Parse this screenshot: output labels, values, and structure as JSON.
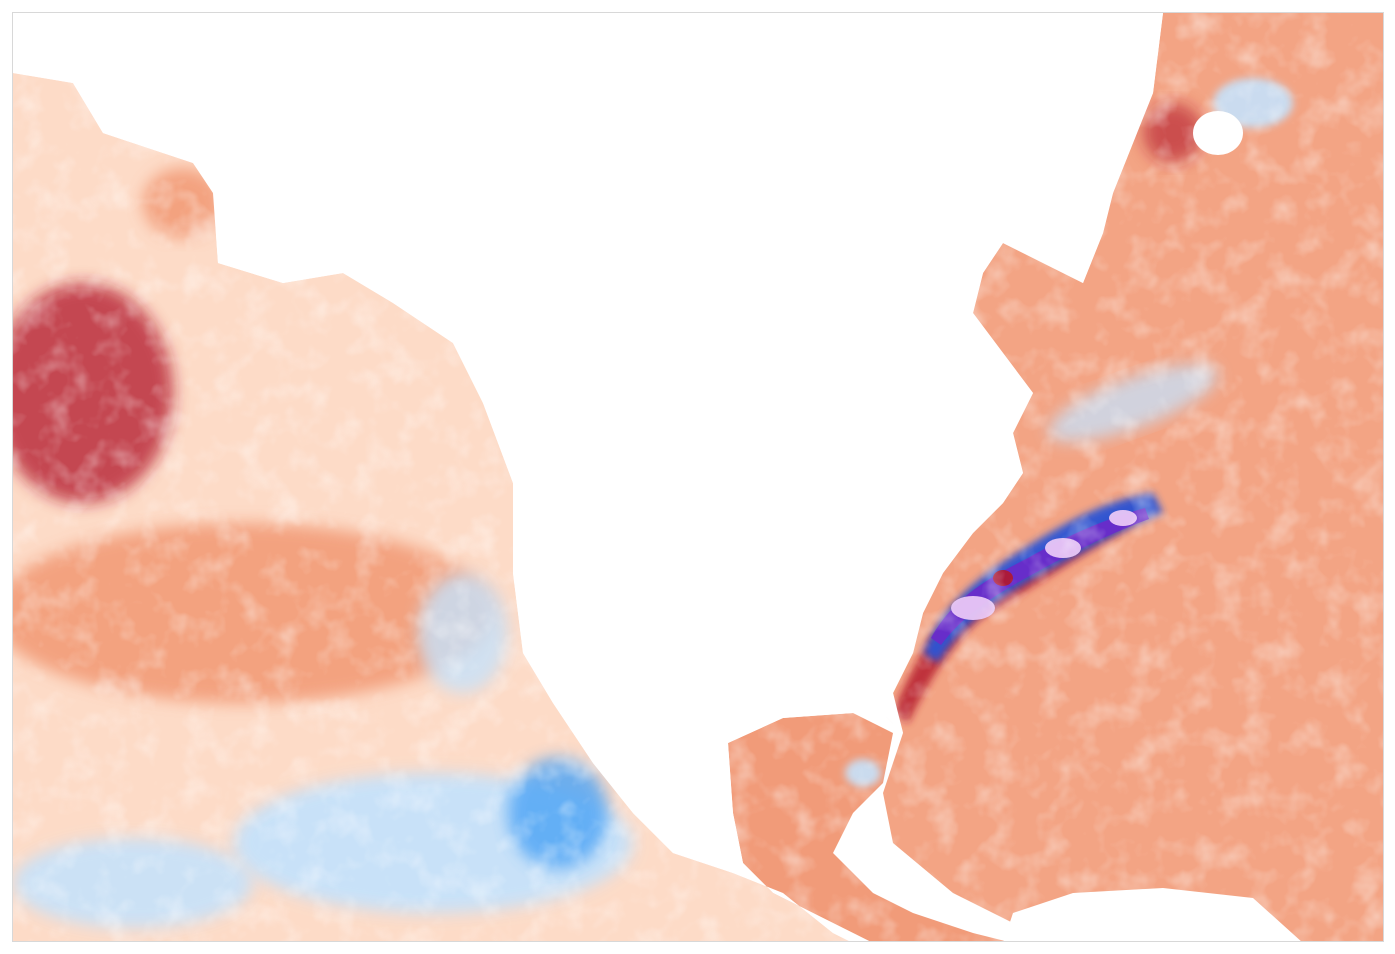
{
  "map": {
    "title": "",
    "type": "sea-surface-temperature-anomaly",
    "palette": {
      "strong_warm": "#b2182b",
      "warm": "#ef8a62",
      "mild_warm": "#fddbc7",
      "neutral": "#fff7e6",
      "mild_cool": "#c6e2fb",
      "cool": "#4ba3f5",
      "strong_cool": "#2b55d6",
      "extreme_cool": "#6a2bc9",
      "extreme_cool_core": "#e9c7f5",
      "land": "#ffffff",
      "frame": "#d8d8d8"
    },
    "regions": [
      {
        "name": "north-pacific-warm-anomaly",
        "anomaly": "warm"
      },
      {
        "name": "eastern-pacific-cool-anomaly",
        "anomaly": "cool"
      },
      {
        "name": "gulf-stream-cold-core-anomaly",
        "anomaly": "extreme_cool"
      },
      {
        "name": "north-atlantic-warm-anomaly",
        "anomaly": "warm"
      },
      {
        "name": "gulf-of-mexico-warm-anomaly",
        "anomaly": "warm"
      }
    ]
  }
}
